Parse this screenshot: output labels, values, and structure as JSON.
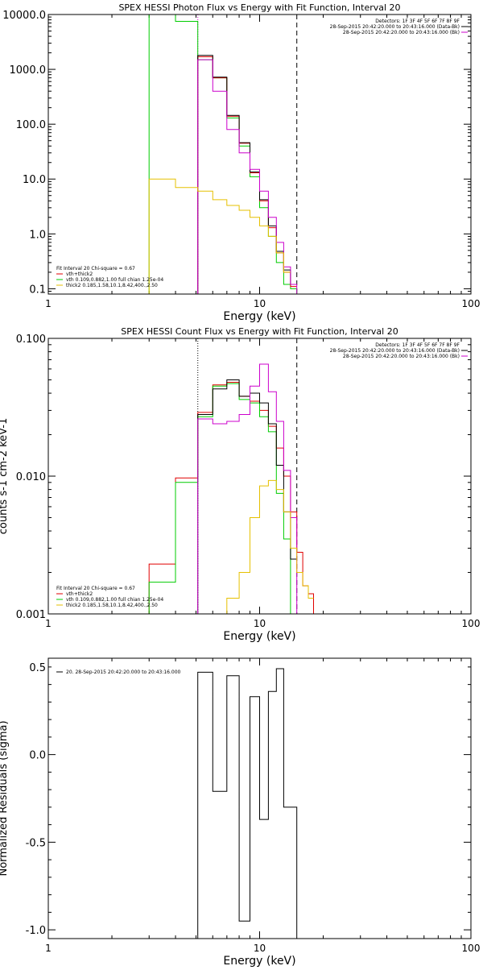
{
  "colors": {
    "black": "#000000",
    "red": "#e00000",
    "green": "#00cc00",
    "yellow": "#e6c000",
    "magenta": "#cc00cc"
  },
  "chart_data": [
    {
      "type": "line",
      "title": "SPEX HESSI Photon Flux vs Energy with Fit Function, Interval 20",
      "xlabel": "Energy (keV)",
      "ylabel": "",
      "xscale": "log",
      "yscale": "log",
      "xlim": [
        1,
        100
      ],
      "ylim": [
        0.08,
        10000
      ],
      "xticks": [
        "1",
        "10",
        "100"
      ],
      "yticks": [
        {
          "v": 10000,
          "label": "10000.0"
        },
        {
          "v": 1000,
          "label": "1000.0"
        },
        {
          "v": 100,
          "label": "100.0"
        },
        {
          "v": 10,
          "label": "10.0"
        },
        {
          "v": 1,
          "label": "1.0"
        },
        {
          "v": 0.1,
          "label": "0.1"
        }
      ],
      "vlines": [
        {
          "x": 5.1,
          "style": "dotted",
          "color": "magenta"
        },
        {
          "x": 15.0,
          "style": "dashed",
          "color": "black"
        }
      ],
      "header_right": [
        "Detectors: 1F 3F 4F 5F 6F 7F 8F 9F",
        "28-Sep-2015 20:42:20.000 to 20:43:16.000 (Data-Bk)",
        "28-Sep-2015 20:42:20.000 to 20:43:16.000 (Bk)"
      ],
      "legend_lines": [
        {
          "text": "Fit Interval 20   Chi-square = 0.67",
          "color": ""
        },
        {
          "text": "vth+thick2",
          "color": "red"
        },
        {
          "text": "vth 0.109,0.882,1.00  full chian 1.25e-04",
          "color": "green"
        },
        {
          "text": "thick2 0.185,1.58,10.1,8.42,400.,2.50",
          "color": "yellow"
        }
      ],
      "series": [
        {
          "color": "green",
          "x": [
            3.0,
            3.0,
            4.0,
            4.0,
            5.1,
            5.1,
            6.0,
            6.0,
            7.0,
            7.0,
            8.0,
            8.0,
            9.0,
            9.0,
            10.0,
            10.0,
            11.0,
            11.0,
            12.0,
            12.0,
            13.0,
            13.0,
            14.0,
            14.0,
            15.0,
            15.0
          ],
          "y": [
            0.08,
            10000,
            10000,
            7500,
            7500,
            1500,
            1500,
            700,
            700,
            130,
            130,
            40,
            40,
            11,
            11,
            3.0,
            3.0,
            0.9,
            0.9,
            0.3,
            0.3,
            0.12,
            0.12,
            0.1,
            0.1,
            0.08
          ]
        },
        {
          "color": "red",
          "x": [
            5.1,
            5.1,
            6.0,
            6.0,
            7.0,
            7.0,
            8.0,
            8.0,
            9.0,
            9.0,
            10.0,
            10.0,
            11.0,
            11.0,
            12.0,
            12.0,
            13.0,
            13.0,
            14.0,
            14.0,
            15.0
          ],
          "y": [
            0.08,
            1700,
            1700,
            700,
            700,
            140,
            140,
            45,
            45,
            13,
            13,
            4.0,
            4.0,
            1.3,
            1.3,
            0.45,
            0.45,
            0.2,
            0.2,
            0.11,
            0.11
          ]
        },
        {
          "color": "black",
          "x": [
            5.1,
            5.1,
            6.0,
            6.0,
            7.0,
            7.0,
            8.0,
            8.0,
            9.0,
            9.0,
            10.0,
            10.0,
            11.0,
            11.0,
            12.0,
            12.0,
            13.0,
            13.0,
            14.0,
            14.0,
            15.0
          ],
          "y": [
            0.08,
            1800,
            1800,
            720,
            720,
            145,
            145,
            46,
            46,
            13.5,
            13.5,
            4.2,
            4.2,
            1.4,
            1.4,
            0.48,
            0.48,
            0.22,
            0.22,
            0.12,
            0.12
          ]
        },
        {
          "color": "magenta",
          "x": [
            5.1,
            5.1,
            6.0,
            6.0,
            7.0,
            7.0,
            8.0,
            8.0,
            9.0,
            9.0,
            10.0,
            10.0,
            11.0,
            11.0,
            12.0,
            12.0,
            13.0,
            13.0,
            14.0,
            14.0,
            15.0,
            15.0
          ],
          "y": [
            0.08,
            1500,
            1500,
            400,
            400,
            80,
            80,
            30,
            30,
            15,
            15,
            6.0,
            6.0,
            2.0,
            2.0,
            0.7,
            0.7,
            0.25,
            0.25,
            0.12,
            0.12,
            0.08
          ]
        },
        {
          "color": "yellow",
          "x": [
            3.0,
            3.0,
            4.0,
            4.0,
            5.1,
            5.1,
            6.0,
            6.0,
            7.0,
            7.0,
            8.0,
            8.0,
            9.0,
            9.0,
            10.0,
            10.0,
            11.0,
            11.0,
            12.0,
            12.0,
            13.0,
            13.0,
            14.0
          ],
          "y": [
            0.08,
            10,
            10,
            7,
            7,
            6,
            6,
            4.2,
            4.2,
            3.3,
            3.3,
            2.7,
            2.7,
            2.0,
            2.0,
            1.4,
            1.4,
            0.9,
            0.9,
            0.45,
            0.45,
            0.2,
            0.2
          ]
        }
      ]
    },
    {
      "type": "line",
      "title": "SPEX HESSI Count Flux vs Energy with Fit Function, Interval 20",
      "xlabel": "Energy (keV)",
      "ylabel": "counts s-1 cm-2 keV-1",
      "xscale": "log",
      "yscale": "log",
      "xlim": [
        1,
        100
      ],
      "ylim": [
        0.001,
        0.1
      ],
      "xticks": [
        "1",
        "10",
        "100"
      ],
      "yticks": [
        {
          "v": 0.1,
          "label": "0.100"
        },
        {
          "v": 0.01,
          "label": "0.010"
        },
        {
          "v": 0.001,
          "label": "0.001"
        }
      ],
      "vlines": [
        {
          "x": 5.1,
          "style": "dotted",
          "color": "black"
        },
        {
          "x": 15.0,
          "style": "dashed",
          "color": "black"
        }
      ],
      "header_right": [
        "Detectors: 1F 3F 4F 5F 6F 7F 8F 9F",
        "28-Sep-2015 20:42:20.000 to 20:43:16.000 (Data-Bk)",
        "28-Sep-2015 20:42:20.000 to 20:43:16.000 (Bk)"
      ],
      "legend_lines": [
        {
          "text": "Fit Interval 20   Chi-square = 0.67",
          "color": ""
        },
        {
          "text": "vth+thick2",
          "color": "red"
        },
        {
          "text": "vth 0.109,0.882,1.00  full chian 1.25e-04",
          "color": "green"
        },
        {
          "text": "thick2 0.185,1.58,10.1,8.42,400.,2.50",
          "color": "yellow"
        }
      ],
      "series": [
        {
          "color": "red",
          "x": [
            3.0,
            3.0,
            4.0,
            4.0,
            5.1,
            5.1,
            6.0,
            6.0,
            7.0,
            7.0,
            8.0,
            8.0,
            9.0,
            9.0,
            10.0,
            10.0,
            11.0,
            11.0,
            12.0,
            12.0,
            13.0,
            13.0,
            14.0,
            14.0,
            15.0,
            15.0,
            16.0,
            16.0,
            17.0,
            17.0,
            18.0,
            18.0
          ],
          "y": [
            0.001,
            0.0023,
            0.0023,
            0.0097,
            0.0097,
            0.029,
            0.029,
            0.046,
            0.046,
            0.048,
            0.048,
            0.038,
            0.038,
            0.035,
            0.035,
            0.03,
            0.03,
            0.023,
            0.023,
            0.016,
            0.016,
            0.01,
            0.01,
            0.0055,
            0.0055,
            0.0028,
            0.0028,
            0.0016,
            0.0016,
            0.0014,
            0.0014,
            0.001
          ]
        },
        {
          "color": "green",
          "x": [
            3.0,
            3.0,
            4.0,
            4.0,
            5.1,
            5.1,
            6.0,
            6.0,
            7.0,
            7.0,
            8.0,
            8.0,
            9.0,
            9.0,
            10.0,
            10.0,
            11.0,
            11.0,
            12.0,
            12.0,
            13.0,
            13.0,
            14.0,
            14.0,
            15.0
          ],
          "y": [
            0.001,
            0.0017,
            0.0017,
            0.009,
            0.009,
            0.027,
            0.027,
            0.045,
            0.045,
            0.047,
            0.047,
            0.036,
            0.036,
            0.034,
            0.034,
            0.027,
            0.027,
            0.021,
            0.021,
            0.0075,
            0.0075,
            0.0035,
            0.0035,
            0.001,
            0.001
          ]
        },
        {
          "color": "black",
          "x": [
            5.1,
            5.1,
            6.0,
            6.0,
            7.0,
            7.0,
            8.0,
            8.0,
            9.0,
            9.0,
            10.0,
            10.0,
            11.0,
            11.0,
            12.0,
            12.0,
            13.0,
            13.0,
            14.0,
            14.0,
            15.0
          ],
          "y": [
            0.001,
            0.028,
            0.028,
            0.043,
            0.043,
            0.05,
            0.05,
            0.038,
            0.038,
            0.04,
            0.04,
            0.034,
            0.034,
            0.024,
            0.024,
            0.012,
            0.012,
            0.0055,
            0.0055,
            0.0025,
            0.0025
          ]
        },
        {
          "color": "magenta",
          "x": [
            5.1,
            5.1,
            6.0,
            6.0,
            7.0,
            7.0,
            8.0,
            8.0,
            9.0,
            9.0,
            10.0,
            10.0,
            11.0,
            11.0,
            12.0,
            12.0,
            13.0,
            13.0,
            14.0,
            14.0,
            15.0,
            15.0
          ],
          "y": [
            0.001,
            0.026,
            0.026,
            0.024,
            0.024,
            0.025,
            0.025,
            0.028,
            0.028,
            0.045,
            0.045,
            0.065,
            0.065,
            0.041,
            0.041,
            0.025,
            0.025,
            0.011,
            0.011,
            0.005,
            0.005,
            0.001
          ]
        },
        {
          "color": "yellow",
          "x": [
            7.0,
            7.0,
            8.0,
            8.0,
            9.0,
            9.0,
            10.0,
            10.0,
            11.0,
            11.0,
            12.0,
            12.0,
            13.0,
            13.0,
            14.0,
            14.0,
            15.0,
            15.0,
            16.0,
            16.0,
            17.0,
            17.0,
            18.0
          ],
          "y": [
            0.001,
            0.0013,
            0.0013,
            0.002,
            0.002,
            0.005,
            0.005,
            0.0085,
            0.0085,
            0.0093,
            0.0093,
            0.008,
            0.008,
            0.0055,
            0.0055,
            0.003,
            0.003,
            0.002,
            0.002,
            0.0016,
            0.0016,
            0.0013,
            0.0013
          ]
        }
      ]
    },
    {
      "type": "line",
      "title": "",
      "xlabel": "Energy (keV)",
      "ylabel": "Normalized Residuals (sigma)",
      "xscale": "log",
      "yscale": "linear",
      "xlim": [
        1,
        100
      ],
      "ylim": [
        -1.05,
        0.55
      ],
      "xticks": [
        "1",
        "10",
        "100"
      ],
      "yticks": [
        {
          "v": 0.5,
          "label": "0.5"
        },
        {
          "v": 0.0,
          "label": "0.0"
        },
        {
          "v": -0.5,
          "label": "-0.5"
        },
        {
          "v": -1.0,
          "label": "-1.0"
        }
      ],
      "legend_lines": [
        {
          "text": "20. 28-Sep-2015 20:42:20.000 to 20:43:16.000",
          "color": "black"
        }
      ],
      "series": [
        {
          "color": "black",
          "x": [
            5.1,
            5.1,
            6.0,
            6.0,
            7.0,
            7.0,
            8.0,
            8.0,
            9.0,
            9.0,
            10.0,
            10.0,
            11.0,
            11.0,
            12.0,
            12.0,
            13.0,
            13.0,
            14.0,
            14.0,
            15.0,
            15.0
          ],
          "y": [
            -1.05,
            0.47,
            0.47,
            -0.21,
            -0.21,
            0.45,
            0.45,
            -0.95,
            -0.95,
            0.33,
            0.33,
            -0.37,
            -0.37,
            0.36,
            0.36,
            0.49,
            0.49,
            -0.3,
            -0.3,
            -0.3,
            -0.3,
            -1.05
          ]
        }
      ]
    }
  ]
}
